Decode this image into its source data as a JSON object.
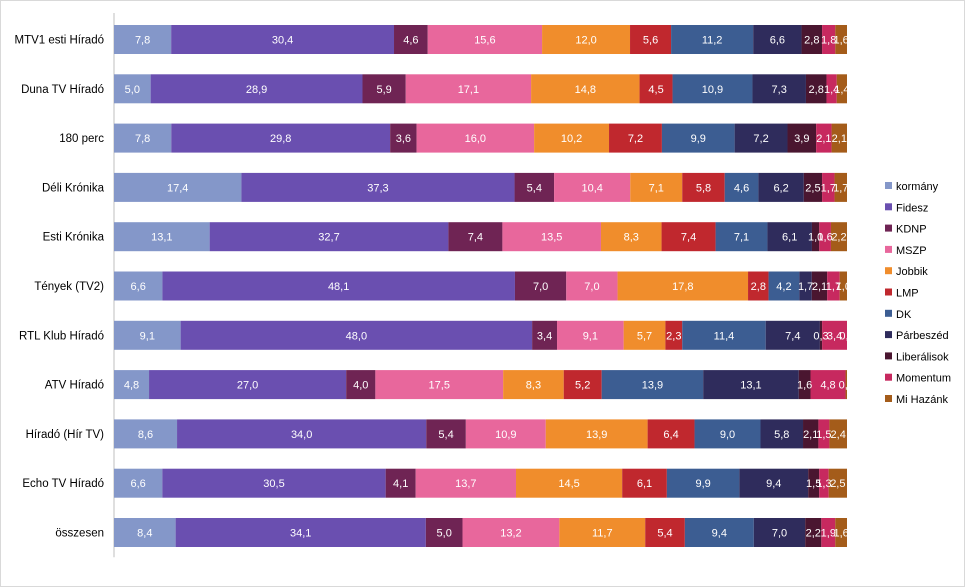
{
  "chart_data": {
    "type": "bar",
    "orientation": "horizontal",
    "stacked": true,
    "percent_stacked": true,
    "grid": false,
    "legend_position": "right",
    "categories": [
      "MTV1 esti Híradó",
      "Duna TV Híradó",
      "180 perc",
      "Déli Krónika",
      "Esti Krónika",
      "Tények (TV2)",
      "RTL Klub Híradó",
      "ATV Híradó",
      "Híradó (Hír TV)",
      "Echo TV Híradó",
      "összesen"
    ],
    "series": [
      {
        "name": "kormány",
        "color": "#8497c9",
        "values": [
          7.8,
          5.0,
          7.8,
          17.4,
          13.1,
          6.6,
          9.1,
          4.8,
          8.6,
          6.6,
          8.4
        ]
      },
      {
        "name": "Fidesz",
        "color": "#6a4fb0",
        "values": [
          30.4,
          28.9,
          29.8,
          37.3,
          32.7,
          48.1,
          48.0,
          27.0,
          34.0,
          30.5,
          34.1
        ]
      },
      {
        "name": "KDNP",
        "color": "#6f2454",
        "values": [
          4.6,
          5.9,
          3.6,
          5.4,
          7.4,
          7.0,
          3.4,
          4.0,
          5.4,
          4.1,
          5.0
        ]
      },
      {
        "name": "MSZP",
        "color": "#e8679c",
        "values": [
          15.6,
          17.1,
          16.0,
          10.4,
          13.5,
          7.0,
          9.1,
          17.5,
          10.9,
          13.7,
          13.2
        ]
      },
      {
        "name": "Jobbik",
        "color": "#f08d2c",
        "values": [
          12.0,
          14.8,
          10.2,
          7.1,
          8.3,
          17.8,
          5.7,
          8.3,
          13.9,
          14.5,
          11.7
        ]
      },
      {
        "name": "LMP",
        "color": "#c0282e",
        "values": [
          5.6,
          4.5,
          7.2,
          5.8,
          7.4,
          2.8,
          2.3,
          5.2,
          6.4,
          6.1,
          5.4
        ]
      },
      {
        "name": "DK",
        "color": "#3c5d92",
        "values": [
          11.2,
          10.9,
          9.9,
          4.6,
          7.1,
          4.2,
          11.4,
          13.9,
          9.0,
          9.9,
          9.4
        ]
      },
      {
        "name": "Párbeszéd",
        "color": "#2f2c5c",
        "values": [
          6.6,
          7.3,
          7.2,
          6.2,
          6.1,
          1.7,
          7.4,
          13.1,
          5.8,
          9.4,
          7.0
        ]
      },
      {
        "name": "Liberálisok",
        "color": "#4a1630",
        "values": [
          2.8,
          2.8,
          3.9,
          2.5,
          1.0,
          2.1,
          0.3,
          1.6,
          2.1,
          1.5,
          2.2
        ]
      },
      {
        "name": "Momentum",
        "color": "#c7295f",
        "values": [
          1.8,
          1.4,
          2.1,
          1.7,
          1.6,
          1.7,
          3.4,
          4.8,
          1.5,
          1.3,
          1.9
        ]
      },
      {
        "name": "Mi Hazánk",
        "color": "#a45c1a",
        "values": [
          1.6,
          1.4,
          2.1,
          1.7,
          2.2,
          1.0,
          0.0,
          0.2,
          2.4,
          2.5,
          1.6
        ]
      }
    ],
    "display_labels": [
      [
        "7,8",
        "30,4",
        "4,6",
        "15,6",
        "12,0",
        "5,6",
        "11,2",
        "6,6",
        "2,8",
        "1,8",
        "1,6"
      ],
      [
        "5,0",
        "28,9",
        "5,9",
        "17,1",
        "14,8",
        "4,5",
        "10,9",
        "7,3",
        "2,8",
        "1,4",
        "1,4"
      ],
      [
        "7,8",
        "29,8",
        "3,6",
        "16,0",
        "10,2",
        "7,2",
        "9,9",
        "7,2",
        "3,9",
        "2,1",
        "2,1"
      ],
      [
        "17,4",
        "37,3",
        "5,4",
        "10,4",
        "7,1",
        "5,8",
        "4,6",
        "6,2",
        "2,5",
        "1,7",
        "1,7"
      ],
      [
        "13,1",
        "32,7",
        "7,4",
        "13,5",
        "8,3",
        "7,4",
        "7,1",
        "6,1",
        "1,0",
        "1,6",
        "2,2"
      ],
      [
        "6,6",
        "48,1",
        "7,0",
        "7,0",
        "17,8",
        "2,8",
        "4,2",
        "1,7",
        "2,1",
        "1,7",
        "1,0"
      ],
      [
        "9,1",
        "48,0",
        "3,4",
        "9,1",
        "5,7",
        "2,3",
        "11,4",
        "7,4",
        "0,3",
        "3,4",
        "0,0"
      ],
      [
        "4,8",
        "27,0",
        "4,0",
        "17,5",
        "8,3",
        "5,2",
        "13,9",
        "13,1",
        "1,6",
        "4,8",
        "0,2"
      ],
      [
        "8,6",
        "34,0",
        "5,4",
        "10,9",
        "13,9",
        "6,4",
        "9,0",
        "5,8",
        "2,1",
        "1,5",
        "2,4"
      ],
      [
        "6,6",
        "30,5",
        "4,1",
        "13,7",
        "14,5",
        "6,1",
        "9,9",
        "9,4",
        "1,5",
        "1,3",
        "2,5"
      ],
      [
        "8,4",
        "34,1",
        "5,0",
        "13,2",
        "11,7",
        "5,4",
        "9,4",
        "7,0",
        "2,2",
        "1,9",
        "1,6"
      ]
    ]
  }
}
